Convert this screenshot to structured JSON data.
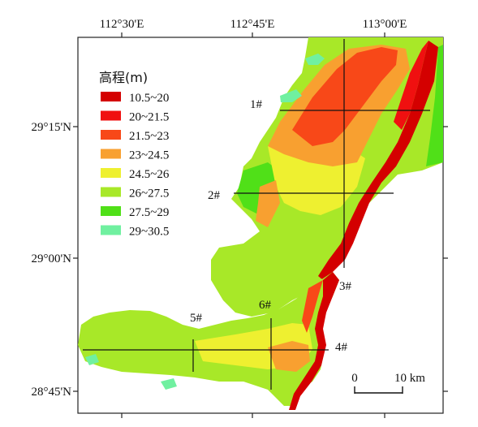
{
  "map": {
    "x_ticks": [
      "112°30'E",
      "112°45'E",
      "113°00'E"
    ],
    "y_ticks": [
      "29°15'N",
      "29°00'N",
      "28°45'N"
    ],
    "legend": {
      "title": "高程(m)",
      "items": [
        {
          "label": "10.5~20",
          "color": "#d40000"
        },
        {
          "label": "20~21.5",
          "color": "#f01010"
        },
        {
          "label": "21.5~23",
          "color": "#f84818"
        },
        {
          "label": "23~24.5",
          "color": "#f8a030"
        },
        {
          "label": "24.5~26",
          "color": "#eef030"
        },
        {
          "label": "26~27.5",
          "color": "#a8e828"
        },
        {
          "label": "27.5~29",
          "color": "#50e018"
        },
        {
          "label": "29~30.5",
          "color": "#70f0a0"
        }
      ]
    },
    "sections": [
      "1#",
      "2#",
      "3#",
      "4#",
      "5#",
      "6#"
    ],
    "scale_bar": {
      "start": "0",
      "end": "10 km"
    }
  }
}
